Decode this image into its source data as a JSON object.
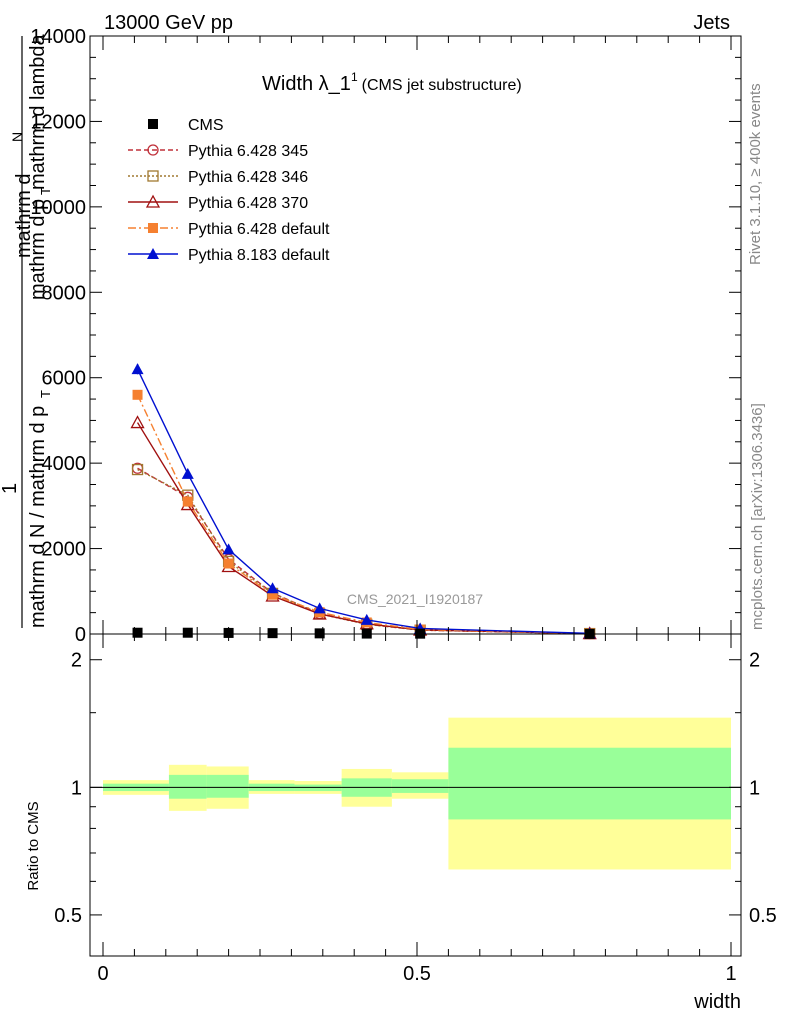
{
  "header": {
    "left": "13000 GeV pp",
    "right": "Jets"
  },
  "title": {
    "main": "Width λ_1",
    "sup": "1",
    "sub": "(CMS jet substructure)"
  },
  "side_labels": {
    "rivet": "Rivet 3.1.10, ≥ 400k events",
    "mcplots": "mcplots.cern.ch [arXiv:1306.3436]"
  },
  "watermark": "CMS_2021_I1920187",
  "y_label": {
    "num_line1": "mathrm d",
    "num_N": "N",
    "num_line2": "mathrm d p",
    "num_T": "T",
    "num_line3": "mathrm d lambda",
    "one": "1",
    "den_line1": "mathrm d N / mathrm d p",
    "den_T": "T"
  },
  "ratio_ylabel": "Ratio to CMS",
  "xlabel": "width",
  "legend": [
    {
      "label": "CMS",
      "color": "#000000",
      "marker": "square-filled",
      "line": "none"
    },
    {
      "label": "Pythia 6.428 345",
      "color": "#c0303a",
      "marker": "circle-open",
      "line": "dashed"
    },
    {
      "label": "Pythia 6.428 346",
      "color": "#a07830",
      "marker": "square-open",
      "line": "dotted"
    },
    {
      "label": "Pythia 6.428 370",
      "color": "#a01010",
      "marker": "triangle-open",
      "line": "solid"
    },
    {
      "label": "Pythia 6.428 default",
      "color": "#f58030",
      "marker": "square-filled",
      "line": "dashdot"
    },
    {
      "label": "Pythia 8.183 default",
      "color": "#0010d0",
      "marker": "triangle-filled",
      "line": "solid"
    }
  ],
  "chart_data": {
    "type": "line",
    "xlabel": "width",
    "xlim": [
      0,
      1
    ],
    "ylim": [
      0,
      14000
    ],
    "ratio_ylim": [
      0.4,
      2.3
    ],
    "x": [
      0.055,
      0.135,
      0.2,
      0.27,
      0.345,
      0.42,
      0.505,
      0.775
    ],
    "x_ticks": [
      "0",
      "0.5",
      "1"
    ],
    "y_ticks": [
      "0",
      "2000",
      "4000",
      "6000",
      "8000",
      "10000",
      "12000",
      "14000"
    ],
    "ratio_y_ticks": [
      "0.5",
      "1",
      "2"
    ],
    "series": [
      {
        "name": "CMS",
        "values": [
          30,
          30,
          25,
          20,
          15,
          10,
          8,
          3
        ]
      },
      {
        "name": "Pythia 6.428 345",
        "values": [
          3880,
          3200,
          1750,
          960,
          480,
          230,
          90,
          10
        ]
      },
      {
        "name": "Pythia 6.428 346",
        "values": [
          3850,
          3250,
          1700,
          950,
          470,
          225,
          90,
          10
        ]
      },
      {
        "name": "Pythia 6.428 370",
        "values": [
          4950,
          3030,
          1580,
          890,
          470,
          240,
          95,
          10
        ]
      },
      {
        "name": "Pythia 6.428 default",
        "values": [
          5600,
          3100,
          1650,
          920,
          510,
          270,
          105,
          12
        ]
      },
      {
        "name": "Pythia 8.183 default",
        "values": [
          6200,
          3750,
          1980,
          1070,
          600,
          330,
          130,
          15
        ]
      }
    ],
    "error_bars": {
      "Pythia 8.183 default": [
        120,
        110
      ],
      "Pythia 6.428 default": [
        60,
        60
      ]
    },
    "ratio_bands": [
      {
        "x0": 0.0,
        "x1": 0.105,
        "yellow": [
          0.96,
          1.04
        ],
        "green": [
          0.98,
          1.02
        ]
      },
      {
        "x0": 0.105,
        "x1": 0.165,
        "yellow": [
          0.88,
          1.13
        ],
        "green": [
          0.94,
          1.07
        ]
      },
      {
        "x0": 0.165,
        "x1": 0.232,
        "yellow": [
          0.89,
          1.12
        ],
        "green": [
          0.945,
          1.07
        ]
      },
      {
        "x0": 0.232,
        "x1": 0.305,
        "yellow": [
          0.965,
          1.04
        ],
        "green": [
          0.98,
          1.02
        ]
      },
      {
        "x0": 0.305,
        "x1": 0.38,
        "yellow": [
          0.965,
          1.035
        ],
        "green": [
          0.98,
          1.015
        ]
      },
      {
        "x0": 0.38,
        "x1": 0.46,
        "yellow": [
          0.9,
          1.105
        ],
        "green": [
          0.95,
          1.05
        ]
      },
      {
        "x0": 0.46,
        "x1": 0.55,
        "yellow": [
          0.94,
          1.085
        ],
        "green": [
          0.97,
          1.045
        ]
      },
      {
        "x0": 0.55,
        "x1": 1.0,
        "yellow": [
          0.64,
          1.46
        ],
        "green": [
          0.84,
          1.24
        ]
      }
    ]
  }
}
